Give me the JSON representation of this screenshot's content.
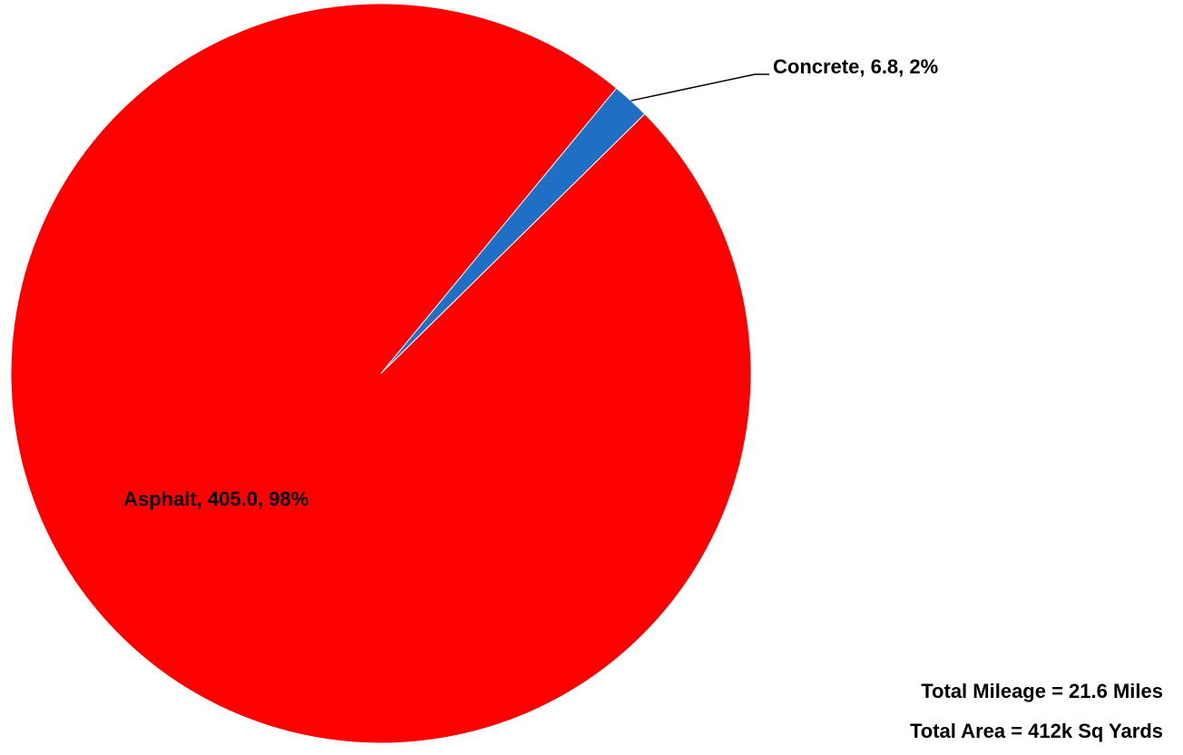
{
  "chart_data": {
    "type": "pie",
    "title": "",
    "slices": [
      {
        "label": "Concrete",
        "value": 6.8,
        "percent": 2,
        "color": "#1f6fc4",
        "data_label": "Concrete, 6.8, 2%"
      },
      {
        "label": "Asphalt",
        "value": 405.0,
        "percent": 98,
        "color": "#ff0000",
        "data_label": "Asphalt, 405.0, 98%"
      }
    ],
    "legend": "none"
  },
  "totals": {
    "mileage": "Total Mileage = 21.6 Miles",
    "area": "Total Area = 412k Sq Yards"
  }
}
